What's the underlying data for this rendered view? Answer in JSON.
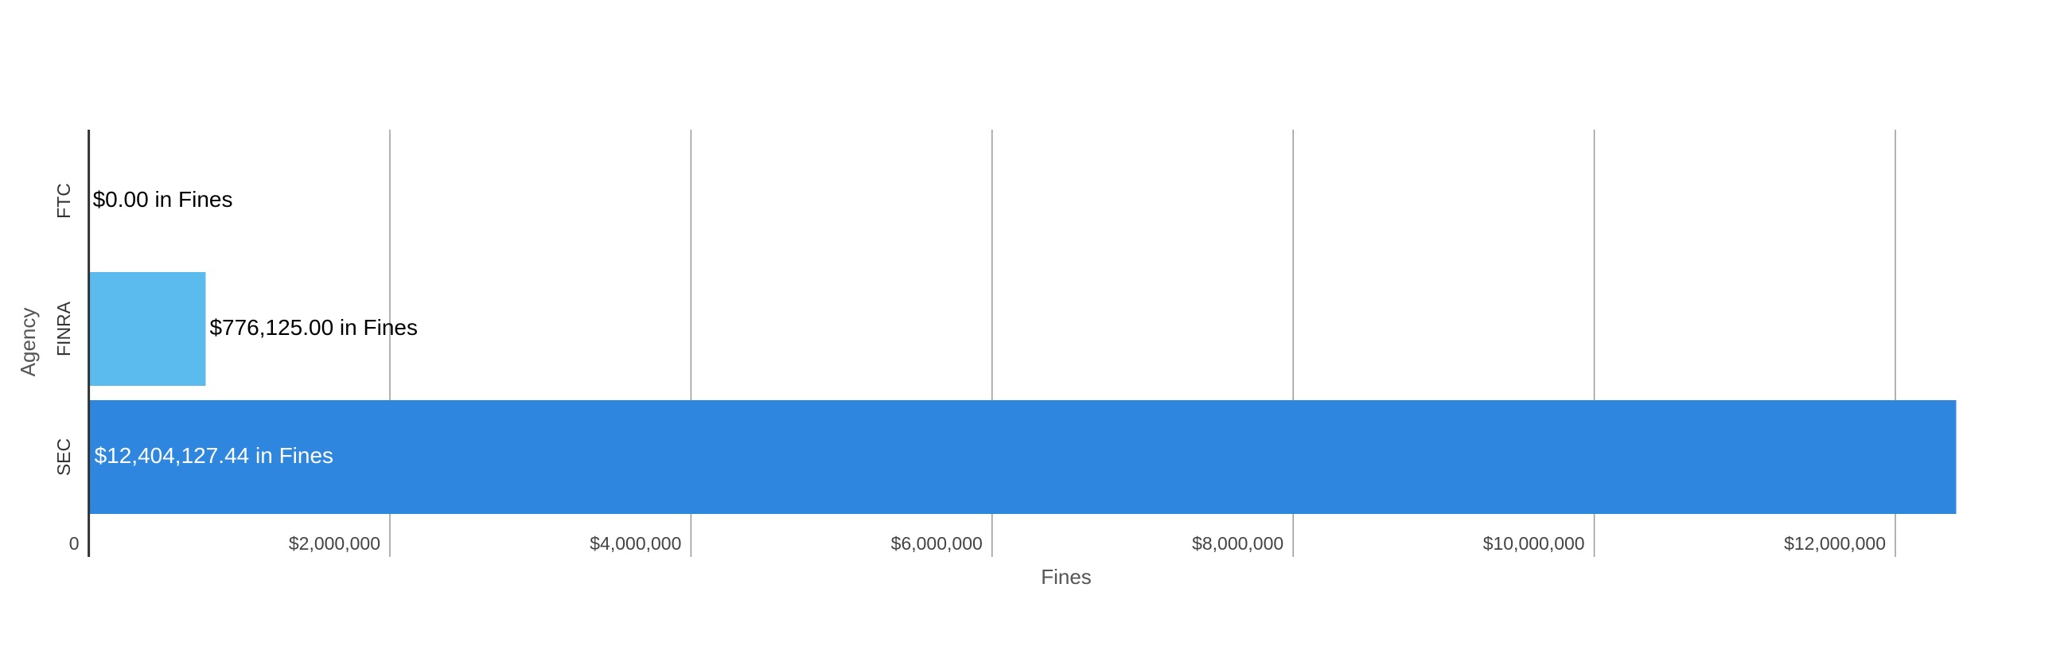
{
  "chart_data": {
    "type": "barh",
    "categories": [
      "FTC",
      "FINRA",
      "SEC"
    ],
    "values": [
      0,
      776125,
      12404127.44
    ],
    "value_labels": [
      "$0.00 in Fines",
      "$776,125.00 in Fines",
      "$12,404,127.44 in Fines"
    ],
    "colors": [
      "#5bbbee",
      "#5bbbee",
      "#2e86de"
    ],
    "x_label": "Fines",
    "y_label": "Agency",
    "xlim": [
      0,
      13000000
    ],
    "xticks": [
      0,
      {
        "value": 2000000,
        "label": "$2,000,000"
      },
      {
        "value": 4000000,
        "label": "$4,000,000"
      },
      {
        "value": 6000000,
        "label": "$6,000,000"
      },
      {
        "value": 8000000,
        "label": "$8,000,000"
      },
      {
        "value": 10000000,
        "label": "$10,000,000"
      },
      {
        "value": 12000000,
        "label": "$12,000,000"
      }
    ],
    "grid": true
  }
}
